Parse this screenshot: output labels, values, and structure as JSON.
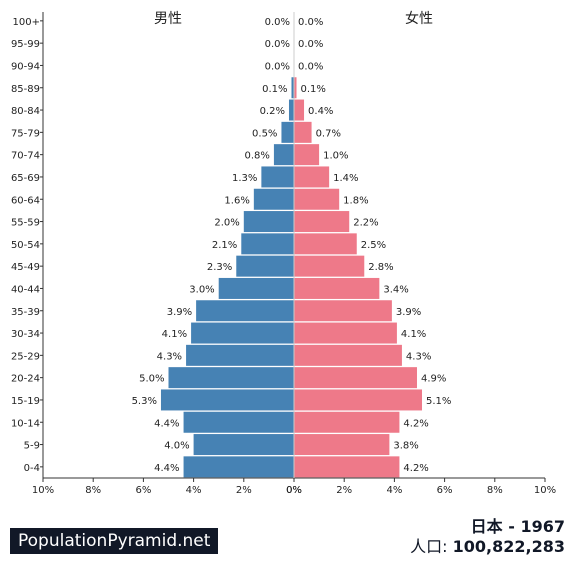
{
  "chart_data": {
    "type": "bar",
    "orientation": "horizontal-pyramid",
    "categories": [
      "0-4",
      "5-9",
      "10-14",
      "15-19",
      "20-24",
      "25-29",
      "30-34",
      "35-39",
      "40-44",
      "45-49",
      "50-54",
      "55-59",
      "60-64",
      "65-69",
      "70-74",
      "75-79",
      "80-84",
      "85-89",
      "90-94",
      "95-99",
      "100+"
    ],
    "series": [
      {
        "name": "男性",
        "color": "#4682b4",
        "values": [
          4.4,
          4.0,
          4.4,
          5.3,
          5.0,
          4.3,
          4.1,
          3.9,
          3.0,
          2.3,
          2.1,
          2.0,
          1.6,
          1.3,
          0.8,
          0.5,
          0.2,
          0.1,
          0.0,
          0.0,
          0.0
        ],
        "labels": [
          "4.4%",
          "4.0%",
          "4.4%",
          "5.3%",
          "5.0%",
          "4.3%",
          "4.1%",
          "3.9%",
          "3.0%",
          "2.3%",
          "2.1%",
          "2.0%",
          "1.6%",
          "1.3%",
          "0.8%",
          "0.5%",
          "0.2%",
          "0.1%",
          "0.0%",
          "0.0%",
          "0.0%"
        ]
      },
      {
        "name": "女性",
        "color": "#ee7989",
        "values": [
          4.2,
          3.8,
          4.2,
          5.1,
          4.9,
          4.3,
          4.1,
          3.9,
          3.4,
          2.8,
          2.5,
          2.2,
          1.8,
          1.4,
          1.0,
          0.7,
          0.4,
          0.1,
          0.0,
          0.0,
          0.0
        ],
        "labels": [
          "4.2%",
          "3.8%",
          "4.2%",
          "5.1%",
          "4.9%",
          "4.3%",
          "4.1%",
          "3.9%",
          "3.4%",
          "2.8%",
          "2.5%",
          "2.2%",
          "1.8%",
          "1.4%",
          "1.0%",
          "0.7%",
          "0.4%",
          "0.1%",
          "0.0%",
          "0.0%",
          "0.0%"
        ]
      }
    ],
    "x_ticks_left": [
      "10%",
      "8%",
      "6%",
      "4%",
      "2%",
      "0%"
    ],
    "x_ticks_right": [
      "0%",
      "2%",
      "4%",
      "6%",
      "8%",
      "10%"
    ],
    "xlim": [
      0,
      10
    ]
  },
  "brand": "PopulationPyramid.net",
  "country_year": "日本 - 1967",
  "population_label": "人口:",
  "population_value": "100,822,283"
}
